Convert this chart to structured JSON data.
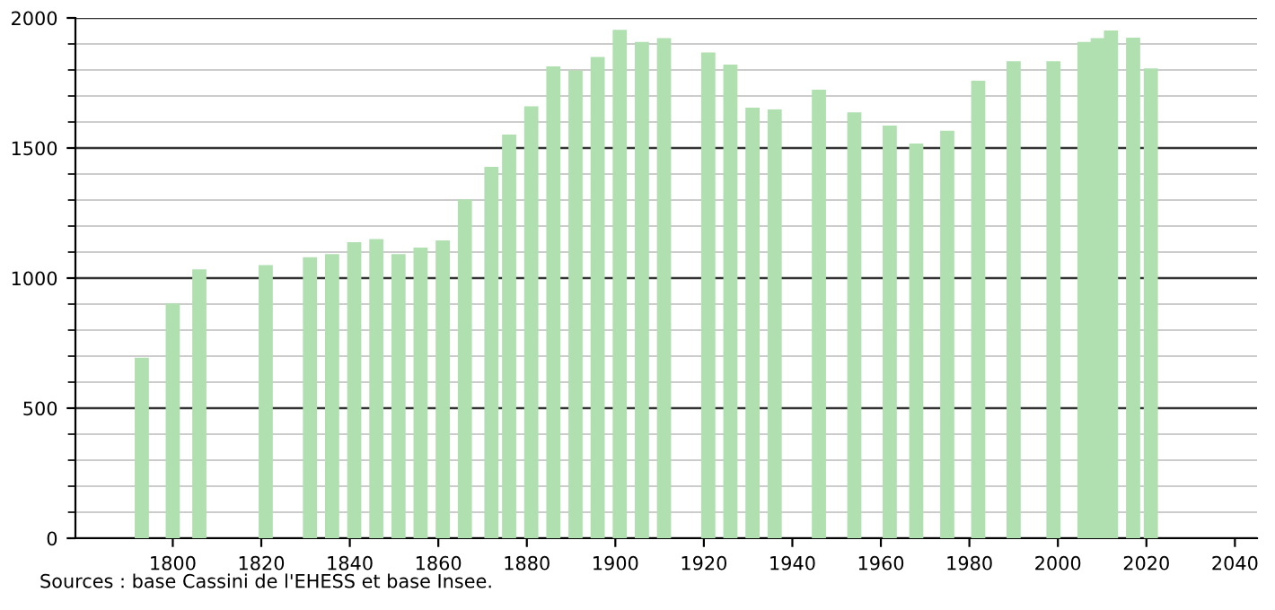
{
  "chart_data": {
    "type": "bar",
    "x": [
      1793,
      1800,
      1806,
      1821,
      1831,
      1836,
      1841,
      1846,
      1851,
      1856,
      1861,
      1866,
      1872,
      1876,
      1881,
      1886,
      1891,
      1896,
      1901,
      1906,
      1911,
      1921,
      1926,
      1931,
      1936,
      1946,
      1954,
      1962,
      1968,
      1975,
      1982,
      1990,
      1999,
      2006,
      2009,
      2012,
      2017,
      2021
    ],
    "values": [
      694,
      903,
      1034,
      1050,
      1080,
      1092,
      1138,
      1150,
      1092,
      1117,
      1145,
      1303,
      1428,
      1552,
      1660,
      1814,
      1798,
      1850,
      1954,
      1908,
      1922,
      1867,
      1821,
      1655,
      1648,
      1724,
      1637,
      1586,
      1517,
      1566,
      1759,
      1834,
      1834,
      1908,
      1922,
      1952,
      1924,
      1806
    ],
    "color": "#b0e0b0",
    "xlim": [
      1778,
      2045
    ],
    "xticks": [
      1800,
      1820,
      1840,
      1860,
      1880,
      1900,
      1920,
      1940,
      1960,
      1980,
      2000,
      2020,
      2040
    ],
    "ylim": [
      0,
      2000
    ],
    "yticks": [
      0,
      500,
      1000,
      1500,
      2000
    ],
    "grid": "y",
    "annotations": [
      "Sources : base Cassini de l'EHESS et base Insee."
    ]
  }
}
